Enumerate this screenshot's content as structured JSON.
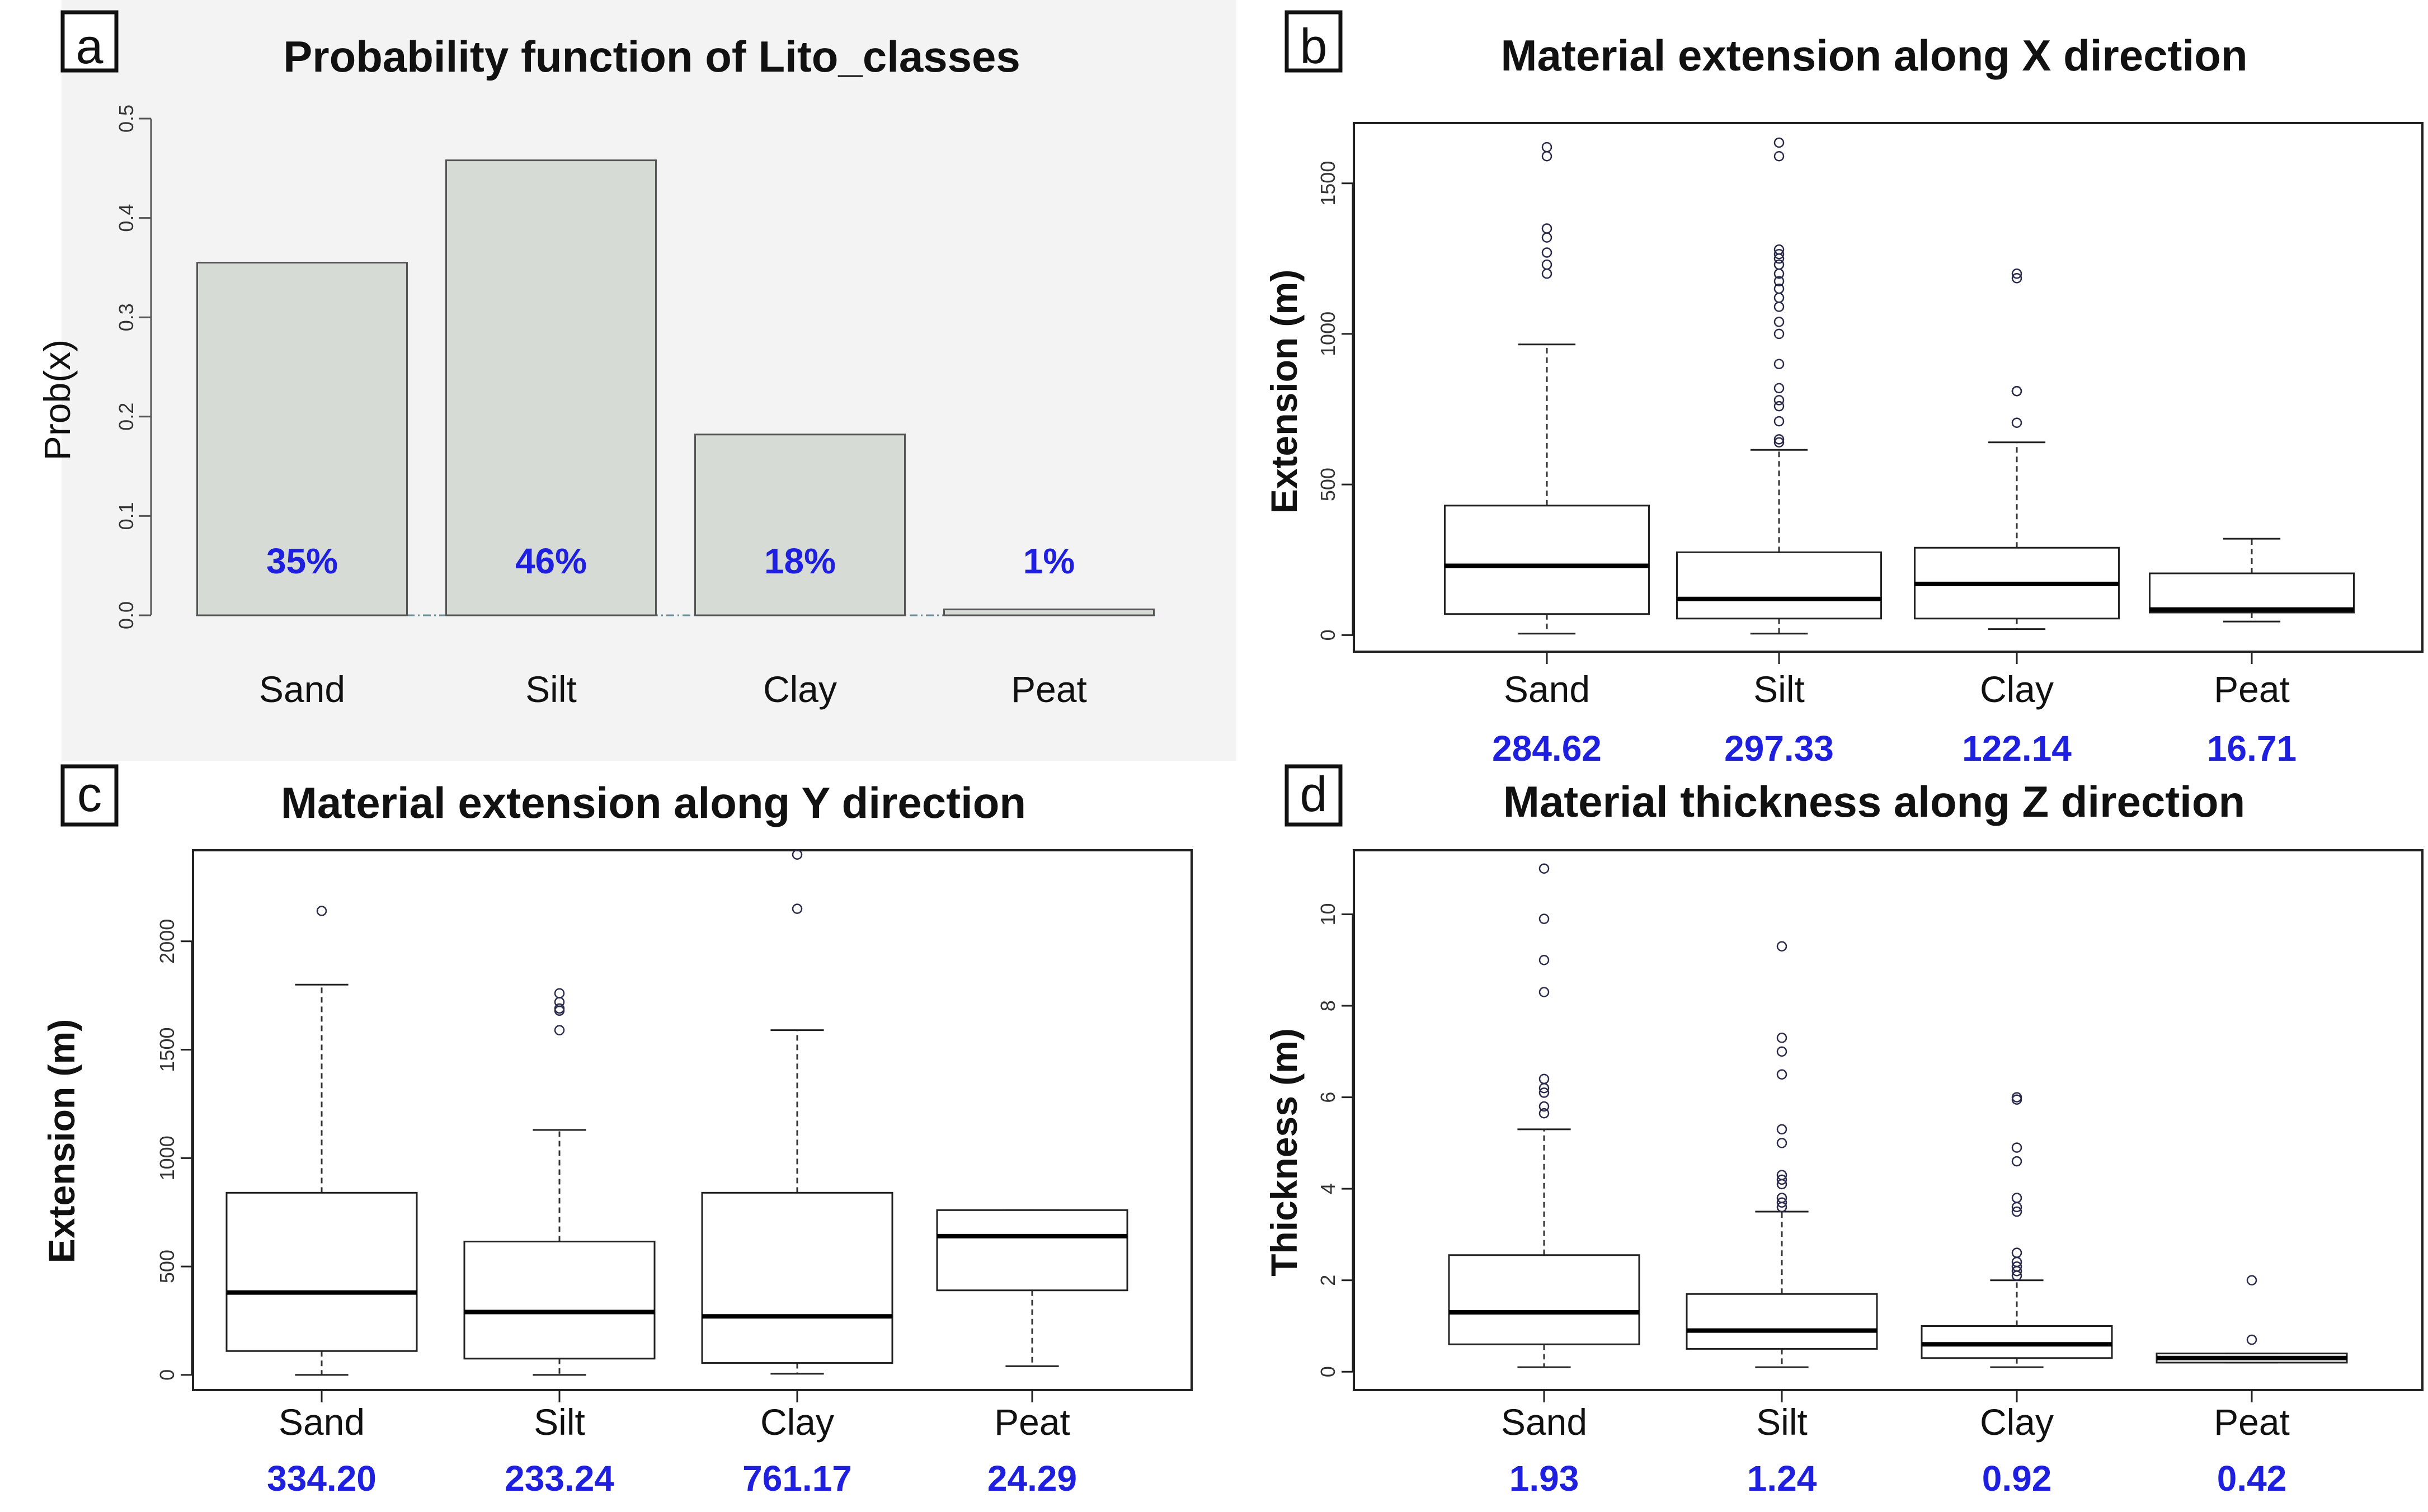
{
  "panels": [
    {
      "letter": "a",
      "title": "Probability function of Lito_classes",
      "ylabel": "Prob(x)"
    },
    {
      "letter": "b",
      "title": "Material extension along X direction",
      "ylabel": "Extension (m)"
    },
    {
      "letter": "c",
      "title": "Material extension along Y direction",
      "ylabel": "Extension (m)"
    },
    {
      "letter": "d",
      "title": "Material thickness along Z direction",
      "ylabel": "Thickness (m)"
    }
  ],
  "chart_data": [
    {
      "type": "bar",
      "panel": "a",
      "title": "Probability function of Lito_classes",
      "xlabel": "",
      "ylabel": "Prob(x)",
      "categories": [
        "Sand",
        "Silt",
        "Clay",
        "Peat"
      ],
      "values": [
        0.355,
        0.458,
        0.182,
        0.006
      ],
      "data_labels": [
        "35%",
        "46%",
        "18%",
        "1%"
      ],
      "ylim": [
        0,
        0.5
      ],
      "yticks": [
        0.0,
        0.1,
        0.2,
        0.3,
        0.4,
        0.5
      ],
      "ytick_labels": [
        "0.0",
        "0.1",
        "0.2",
        "0.3",
        "0.4",
        "0.5"
      ],
      "colors": {
        "bar_fill": "#d6dbd6",
        "bar_stroke": "#555555",
        "label": "#1f1fe0",
        "panel_bg": "#f3f3f3"
      }
    },
    {
      "type": "boxplot",
      "panel": "b",
      "title": "Material extension along X direction",
      "xlabel": "",
      "ylabel": "Extension (m)",
      "categories": [
        "Sand",
        "Silt",
        "Clay",
        "Peat"
      ],
      "summary_values": [
        "284.62",
        "297.33",
        "122.14",
        "16.71"
      ],
      "ylim": [
        -55,
        1700
      ],
      "yticks": [
        0,
        500,
        1000,
        1500
      ],
      "ytick_labels": [
        "0",
        "500",
        "1000",
        "1500"
      ],
      "boxes": [
        {
          "whisker_low": 5,
          "q1": 70,
          "median": 230,
          "q3": 430,
          "whisker_high": 965,
          "outliers": [
            1620,
            1590,
            1350,
            1320,
            1270,
            1230,
            1200
          ]
        },
        {
          "whisker_low": 5,
          "q1": 55,
          "median": 120,
          "q3": 275,
          "whisker_high": 615,
          "outliers": [
            1635,
            1590,
            1280,
            1265,
            1250,
            1230,
            1200,
            1175,
            1150,
            1120,
            1090,
            1040,
            1000,
            900,
            820,
            780,
            760,
            710,
            640,
            650
          ]
        },
        {
          "whisker_low": 20,
          "q1": 55,
          "median": 170,
          "q3": 290,
          "whisker_high": 640,
          "outliers": [
            1200,
            1185,
            810,
            810,
            705
          ]
        },
        {
          "whisker_low": 45,
          "q1": 75,
          "median": 85,
          "q3": 205,
          "whisker_high": 320,
          "outliers": []
        }
      ],
      "colors": {
        "label": "#1f1fe0"
      }
    },
    {
      "type": "boxplot",
      "panel": "c",
      "title": "Material extension along Y direction",
      "xlabel": "",
      "ylabel": "Extension (m)",
      "categories": [
        "Sand",
        "Silt",
        "Clay",
        "Peat"
      ],
      "summary_values": [
        "334.20",
        "233.24",
        "761.17",
        "24.29"
      ],
      "ylim": [
        -70,
        2420
      ],
      "yticks": [
        0,
        500,
        1000,
        1500,
        2000
      ],
      "ytick_labels": [
        "0",
        "500",
        "1000",
        "1500",
        "2000"
      ],
      "boxes": [
        {
          "whisker_low": 0,
          "q1": 110,
          "median": 380,
          "q3": 840,
          "whisker_high": 1800,
          "outliers": [
            2140
          ]
        },
        {
          "whisker_low": 0,
          "q1": 75,
          "median": 290,
          "q3": 615,
          "whisker_high": 1130,
          "outliers": [
            1760,
            1720,
            1690,
            1680,
            1590
          ]
        },
        {
          "whisker_low": 5,
          "q1": 55,
          "median": 270,
          "q3": 840,
          "whisker_high": 1590,
          "outliers": [
            2400,
            2150
          ]
        },
        {
          "whisker_low": 40,
          "q1": 390,
          "median": 640,
          "q3": 760,
          "whisker_high": 760,
          "outliers": []
        }
      ],
      "colors": {
        "label": "#1f1fe0"
      }
    },
    {
      "type": "boxplot",
      "panel": "d",
      "title": "Material thickness along Z direction",
      "xlabel": "",
      "ylabel": "Thickness (m)",
      "categories": [
        "Sand",
        "Silt",
        "Clay",
        "Peat"
      ],
      "summary_values": [
        "1.93",
        "1.24",
        "0.92",
        "0.42"
      ],
      "ylim": [
        -0.4,
        11.4
      ],
      "yticks": [
        0,
        2,
        4,
        6,
        8,
        10
      ],
      "ytick_labels": [
        "0",
        "2",
        "4",
        "6",
        "8",
        "10"
      ],
      "boxes": [
        {
          "whisker_low": 0.1,
          "q1": 0.6,
          "median": 1.3,
          "q3": 2.55,
          "whisker_high": 5.3,
          "outliers": [
            11.0,
            9.9,
            9.0,
            8.3,
            6.4,
            6.2,
            6.1,
            5.8,
            5.65
          ]
        },
        {
          "whisker_low": 0.1,
          "q1": 0.5,
          "median": 0.9,
          "q3": 1.7,
          "whisker_high": 3.5,
          "outliers": [
            9.3,
            7.3,
            7.0,
            6.5,
            5.3,
            5.0,
            4.3,
            4.2,
            4.1,
            3.8,
            3.7,
            3.6
          ]
        },
        {
          "whisker_low": 0.1,
          "q1": 0.3,
          "median": 0.6,
          "q3": 1.0,
          "whisker_high": 2.0,
          "outliers": [
            6.0,
            5.95,
            4.9,
            4.6,
            3.8,
            3.6,
            3.5,
            2.6,
            2.4,
            2.3,
            2.2,
            2.1
          ]
        },
        {
          "whisker_low": 0.2,
          "q1": 0.2,
          "median": 0.3,
          "q3": 0.4,
          "whisker_high": 0.4,
          "outliers": [
            2.0,
            0.7
          ]
        }
      ],
      "colors": {
        "label": "#1f1fe0"
      }
    }
  ]
}
